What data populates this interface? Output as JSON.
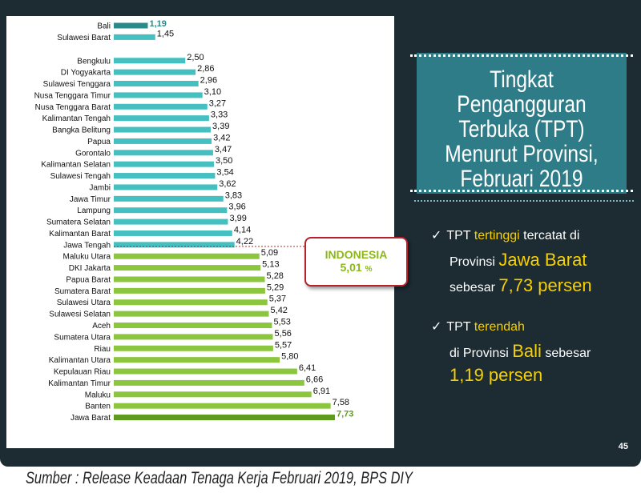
{
  "title": "Tingkat Pengangguran Terbuka (TPT) Menurut Provinsi, Februari 2019",
  "title_lines": [
    "Tingkat",
    "Pengangguran",
    "Terbuka (TPT)",
    "Menurut Provinsi,",
    "Februari 2019"
  ],
  "highlight_high": {
    "check": "✓",
    "l1_a": "TPT ",
    "l1_b": "tertinggi",
    "l1_c": " tercatat di",
    "l2_a": "Provinsi ",
    "l2_b": "Jawa Barat",
    "l3_a": "sebesar ",
    "l3_b": "7,73 persen"
  },
  "highlight_low": {
    "check": "✓",
    "l1_a": "TPT ",
    "l1_b": "terendah",
    "l2_a": "di Provinsi ",
    "l2_b": "Bali",
    "l2_c": " sebesar",
    "l3": "1,19 persen"
  },
  "national": {
    "label": "INDONESIA",
    "value": "5,01",
    "unit": "%"
  },
  "page_number": "45",
  "source": "Sumber : Release Keadaan Tenaga Kerja Februari 2019,  BPS DIY",
  "colors": {
    "teal_bar": "#45bfc0",
    "teal_dark": "#2a8a8a",
    "green_bar": "#8cc63e",
    "green_dark": "#5e9a1e",
    "background": "#1d2b33",
    "title_box": "#2e7c88",
    "highlight": "#f7d000",
    "indonesia_border": "#b8212a"
  },
  "chart_data": {
    "type": "bar",
    "orientation": "horizontal",
    "categories": [
      "Bali",
      "Sulawesi Barat",
      "Bengkulu",
      "DI Yogyakarta",
      "Sulawesi Tenggara",
      "Nusa Tenggara Timur",
      "Nusa Tenggara Barat",
      "Kalimantan Tengah",
      "Bangka Belitung",
      "Papua",
      "Gorontalo",
      "Kalimantan Selatan",
      "Sulawesi Tengah",
      "Jambi",
      "Jawa Timur",
      "Lampung",
      "Sumatera Selatan",
      "Kalimantan Barat",
      "Jawa Tengah",
      "Maluku Utara",
      "DKI Jakarta",
      "Papua Barat",
      "Sumatera Barat",
      "Sulawesi Utara",
      "Sulawesi Selatan",
      "Aceh",
      "Sumatera Utara",
      "Riau",
      "Kalimantan Utara",
      "Kepulauan Riau",
      "Kalimantan Timur",
      "Maluku",
      "Banten",
      "Jawa Barat"
    ],
    "values": [
      1.19,
      1.45,
      2.5,
      2.86,
      2.96,
      3.1,
      3.27,
      3.33,
      3.39,
      3.42,
      3.47,
      3.5,
      3.54,
      3.62,
      3.83,
      3.96,
      3.99,
      4.14,
      4.22,
      5.09,
      5.13,
      5.28,
      5.29,
      5.37,
      5.42,
      5.53,
      5.56,
      5.57,
      5.8,
      6.41,
      6.66,
      6.91,
      7.58,
      7.73
    ],
    "value_labels": [
      "1,19",
      "1,45",
      "2,50",
      "2,86",
      "2,96",
      "3,10",
      "3,27",
      "3,33",
      "3,39",
      "3,42",
      "3,47",
      "3,50",
      "3,54",
      "3,62",
      "3,83",
      "3,96",
      "3,99",
      "4,14",
      "4,22",
      "5,09",
      "5,13",
      "5,28",
      "5,29",
      "5,37",
      "5,42",
      "5,53",
      "5,56",
      "5,57",
      "5,80",
      "6,41",
      "6,66",
      "6,91",
      "7,58",
      "7,73"
    ],
    "reference_line": {
      "label": "INDONESIA",
      "value": 5.01
    },
    "xlim": [
      0,
      8.2
    ],
    "grid": false,
    "legend": "none",
    "unit": "%"
  }
}
